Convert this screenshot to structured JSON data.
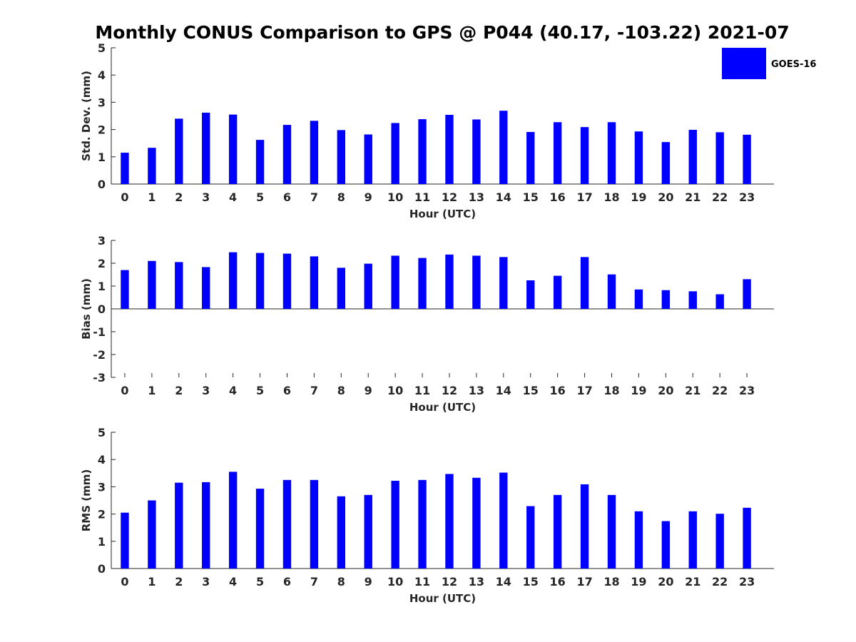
{
  "title": "Monthly CONUS Comparison to GPS @ P044 (40.17, -103.22) 2021-07",
  "bar_color": "#0000ff",
  "legend": {
    "label": "GOES-16",
    "placement": "top-right"
  },
  "chart_data": [
    {
      "type": "bar",
      "ylabel": "Std. Dev. (mm)",
      "xlabel": "Hour (UTC)",
      "ylim": [
        0,
        5
      ],
      "yticks": [
        "0",
        "1",
        "2",
        "3",
        "4",
        "5"
      ],
      "categories": [
        "0",
        "1",
        "2",
        "3",
        "4",
        "5",
        "6",
        "7",
        "8",
        "9",
        "10",
        "11",
        "12",
        "13",
        "14",
        "15",
        "16",
        "17",
        "18",
        "19",
        "20",
        "21",
        "22",
        "23"
      ],
      "series": [
        {
          "name": "GOES-16",
          "values": [
            1.15,
            1.33,
            2.4,
            2.62,
            2.55,
            1.62,
            2.17,
            2.32,
            1.98,
            1.82,
            2.24,
            2.38,
            2.54,
            2.37,
            2.69,
            1.91,
            2.27,
            2.09,
            2.27,
            1.93,
            1.54,
            1.99,
            1.9,
            1.81
          ]
        }
      ]
    },
    {
      "type": "bar",
      "ylabel": "Bias (mm)",
      "xlabel": "Hour (UTC)",
      "ylim": [
        -3,
        3
      ],
      "yticks": [
        "-3",
        "-2",
        "-1",
        "0",
        "1",
        "2",
        "3"
      ],
      "categories": [
        "0",
        "1",
        "2",
        "3",
        "4",
        "5",
        "6",
        "7",
        "8",
        "9",
        "10",
        "11",
        "12",
        "13",
        "14",
        "15",
        "16",
        "17",
        "18",
        "19",
        "20",
        "21",
        "22",
        "23"
      ],
      "series": [
        {
          "name": "GOES-16",
          "values": [
            1.7,
            2.1,
            2.05,
            1.83,
            2.48,
            2.45,
            2.42,
            2.3,
            1.8,
            1.98,
            2.33,
            2.23,
            2.38,
            2.33,
            2.27,
            1.25,
            1.45,
            2.27,
            1.51,
            0.85,
            0.82,
            0.77,
            0.64,
            1.3
          ]
        }
      ]
    },
    {
      "type": "bar",
      "ylabel": "RMS (mm)",
      "xlabel": "Hour (UTC)",
      "ylim": [
        0,
        5
      ],
      "yticks": [
        "0",
        "1",
        "2",
        "3",
        "4",
        "5"
      ],
      "categories": [
        "0",
        "1",
        "2",
        "3",
        "4",
        "5",
        "6",
        "7",
        "8",
        "9",
        "10",
        "11",
        "12",
        "13",
        "14",
        "15",
        "16",
        "17",
        "18",
        "19",
        "20",
        "21",
        "22",
        "23"
      ],
      "series": [
        {
          "name": "GOES-16",
          "values": [
            2.05,
            2.5,
            3.15,
            3.17,
            3.55,
            2.93,
            3.25,
            3.25,
            2.65,
            2.7,
            3.22,
            3.25,
            3.47,
            3.33,
            3.52,
            2.29,
            2.7,
            3.09,
            2.7,
            2.1,
            1.74,
            2.1,
            2.01,
            2.23
          ]
        }
      ]
    }
  ]
}
